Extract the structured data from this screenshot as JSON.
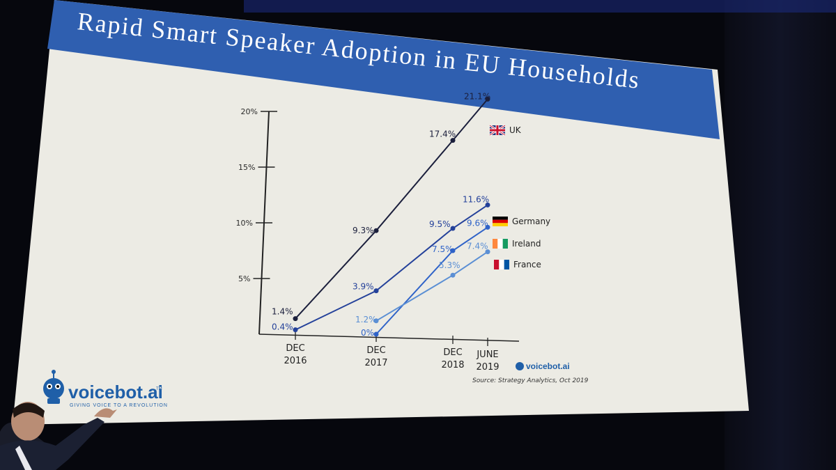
{
  "slide": {
    "title": "Rapid Smart Speaker Adoption in EU Households",
    "source": "Source: Strategy Analytics, Oct 2019",
    "logo_text": "voicebot.ai",
    "logo_tm": "TM",
    "logo_tagline": "GIVING VOICE TO A REVOLUTION",
    "logo_small_text": "voicebot.ai"
  },
  "colors": {
    "title_bar": "#2f5fb0",
    "slide_bg": "#ecebe4",
    "uk": "#1b1f3c",
    "germany": "#24419a",
    "ireland": "#2f63c8",
    "france": "#5b8fd4",
    "axis": "#222222"
  },
  "chart_data": {
    "type": "line",
    "title": "Rapid Smart Speaker Adoption in EU Households",
    "xlabel": "",
    "ylabel": "",
    "ylim": [
      0,
      20
    ],
    "yticks": [
      "5%",
      "10%",
      "15%",
      "20%"
    ],
    "categories": [
      {
        "line1": "DEC",
        "line2": "2016"
      },
      {
        "line1": "DEC",
        "line2": "2017"
      },
      {
        "line1": "DEC",
        "line2": "2018"
      },
      {
        "line1": "JUNE",
        "line2": "2019"
      }
    ],
    "series": [
      {
        "name": "UK",
        "color_key": "uk",
        "points": [
          {
            "x": 0,
            "y": 1.4,
            "label": "1.4%"
          },
          {
            "x": 1,
            "y": 9.3,
            "label": "9.3%"
          },
          {
            "x": 2,
            "y": 17.4,
            "label": "17.4%"
          },
          {
            "x": 3,
            "y": 21.1,
            "label": "21.1%"
          }
        ]
      },
      {
        "name": "Germany",
        "color_key": "germany",
        "points": [
          {
            "x": 0,
            "y": 0.4,
            "label": "0.4%"
          },
          {
            "x": 1,
            "y": 3.9,
            "label": "3.9%"
          },
          {
            "x": 2,
            "y": 9.5,
            "label": "9.5%"
          },
          {
            "x": 3,
            "y": 11.6,
            "label": "11.6%"
          }
        ]
      },
      {
        "name": "Ireland",
        "color_key": "ireland",
        "points": [
          {
            "x": 1,
            "y": 0,
            "label": "0%"
          },
          {
            "x": 2,
            "y": 7.5,
            "label": "7.5%"
          },
          {
            "x": 3,
            "y": 9.6,
            "label": "9.6%"
          }
        ]
      },
      {
        "name": "France",
        "color_key": "france",
        "points": [
          {
            "x": 1,
            "y": 1.2,
            "label": "1.2%"
          },
          {
            "x": 2,
            "y": 5.3,
            "label": "5.3%"
          },
          {
            "x": 3,
            "y": 7.4,
            "label": "7.4%"
          }
        ]
      }
    ],
    "source": "Source: Strategy Analytics, Oct 2019"
  }
}
